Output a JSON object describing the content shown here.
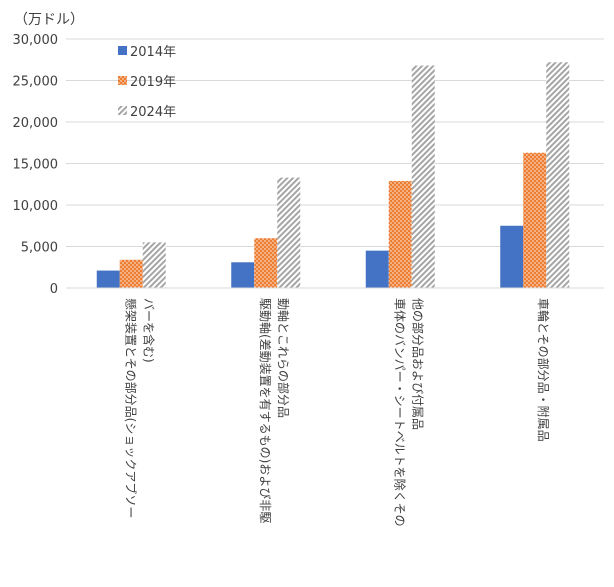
{
  "chart_data": {
    "type": "bar",
    "unit_label": "（万ドル）",
    "categories": [
      [
        "懸架装置とその部分品(ショックアブソー",
        "バーを含む)"
      ],
      [
        "駆動軸(差動装置を有するもの)および非駆",
        "動軸とこれらの部分品"
      ],
      [
        "車体のバンパー・シートベルトを除くその",
        "他の部分品および付属品"
      ],
      [
        "車輪とその部分品・附属品"
      ]
    ],
    "series": [
      {
        "name": "2014年",
        "values": [
          2100,
          3100,
          4500,
          7500
        ],
        "color": "#4472C4",
        "fill": "solid"
      },
      {
        "name": "2019年",
        "values": [
          3400,
          6000,
          12900,
          16300
        ],
        "color": "#ED7D31",
        "fill": "dots"
      },
      {
        "name": "2024年",
        "values": [
          5500,
          13300,
          26800,
          27200
        ],
        "color": "#A5A5A5",
        "fill": "hatch"
      }
    ],
    "ylim": [
      0,
      30000
    ],
    "yticks": [
      "0",
      "5,000",
      "10,000",
      "15,000",
      "20,000",
      "25,000",
      "30,000"
    ],
    "grid": true,
    "legend_position": "top-left"
  }
}
